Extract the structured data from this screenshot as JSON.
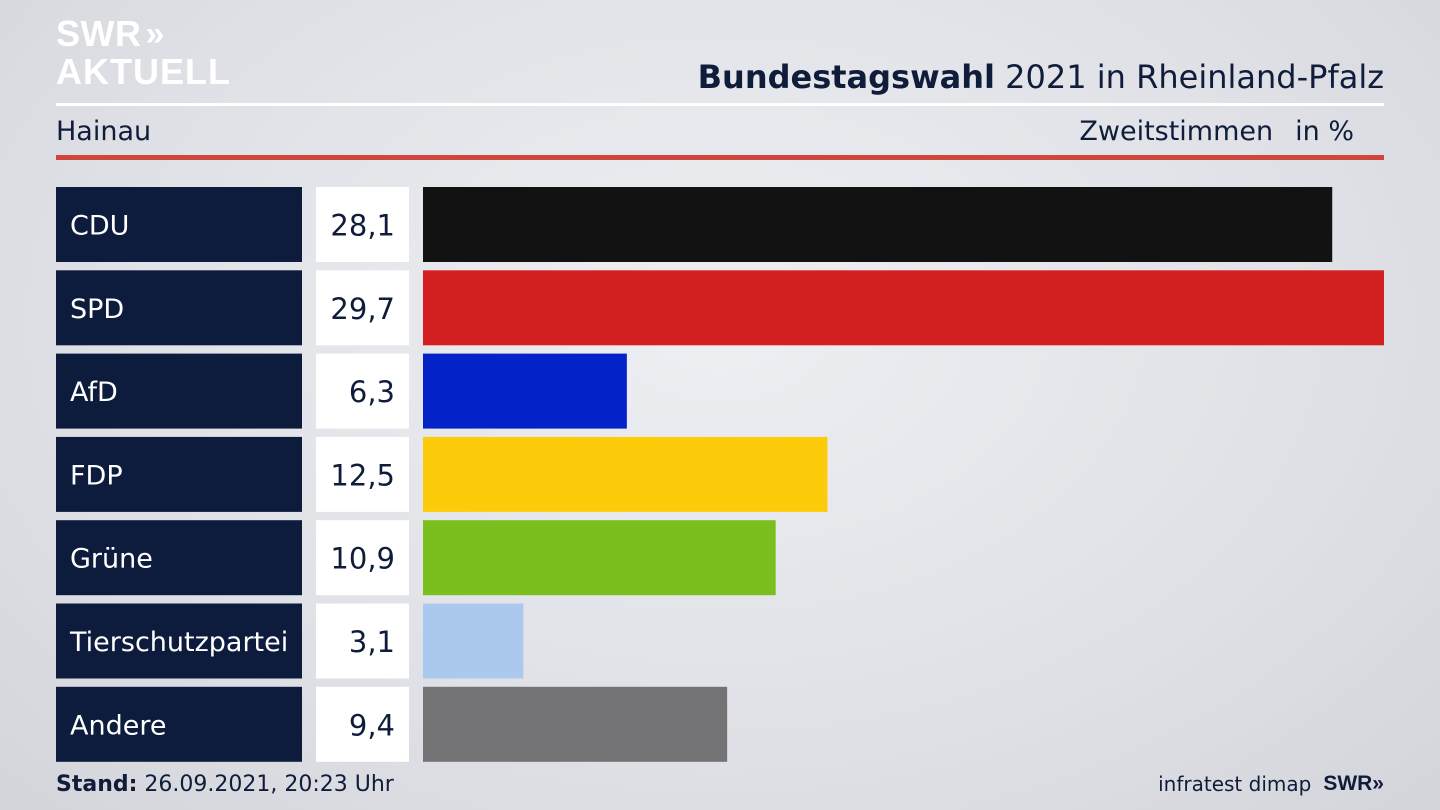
{
  "brand": {
    "line1": "SWR",
    "line2": "AKTUELL",
    "chevrons": "»"
  },
  "header": {
    "title_bold": "Bundestagswahl",
    "title_rest": " 2021 in Rheinland-Pfalz"
  },
  "subheader": {
    "region": "Hainau",
    "measure": "Zweitstimmen",
    "unit": "in %"
  },
  "chart_data": {
    "type": "bar",
    "orientation": "horizontal",
    "categories": [
      "CDU",
      "SPD",
      "AfD",
      "FDP",
      "Grüne",
      "Tierschutzpartei",
      "Andere"
    ],
    "values": [
      28.1,
      29.7,
      6.3,
      12.5,
      10.9,
      3.1,
      9.4
    ],
    "value_labels": [
      "28,1",
      "29,7",
      "6,3",
      "12,5",
      "10,9",
      "3,1",
      "9,4"
    ],
    "colors": [
      "#121212",
      "#d42020",
      "#0322c8",
      "#fccc0a",
      "#7abf1e",
      "#abc8ee",
      "#737376"
    ],
    "xlim": [
      0,
      29.7
    ],
    "title": "Bundestagswahl 2021 in Rheinland-Pfalz"
  },
  "footer": {
    "stand_label": "Stand:",
    "stand_value": " 26.09.2021, 20:23 Uhr",
    "source": "infratest dimap",
    "logo": "SWR»"
  }
}
